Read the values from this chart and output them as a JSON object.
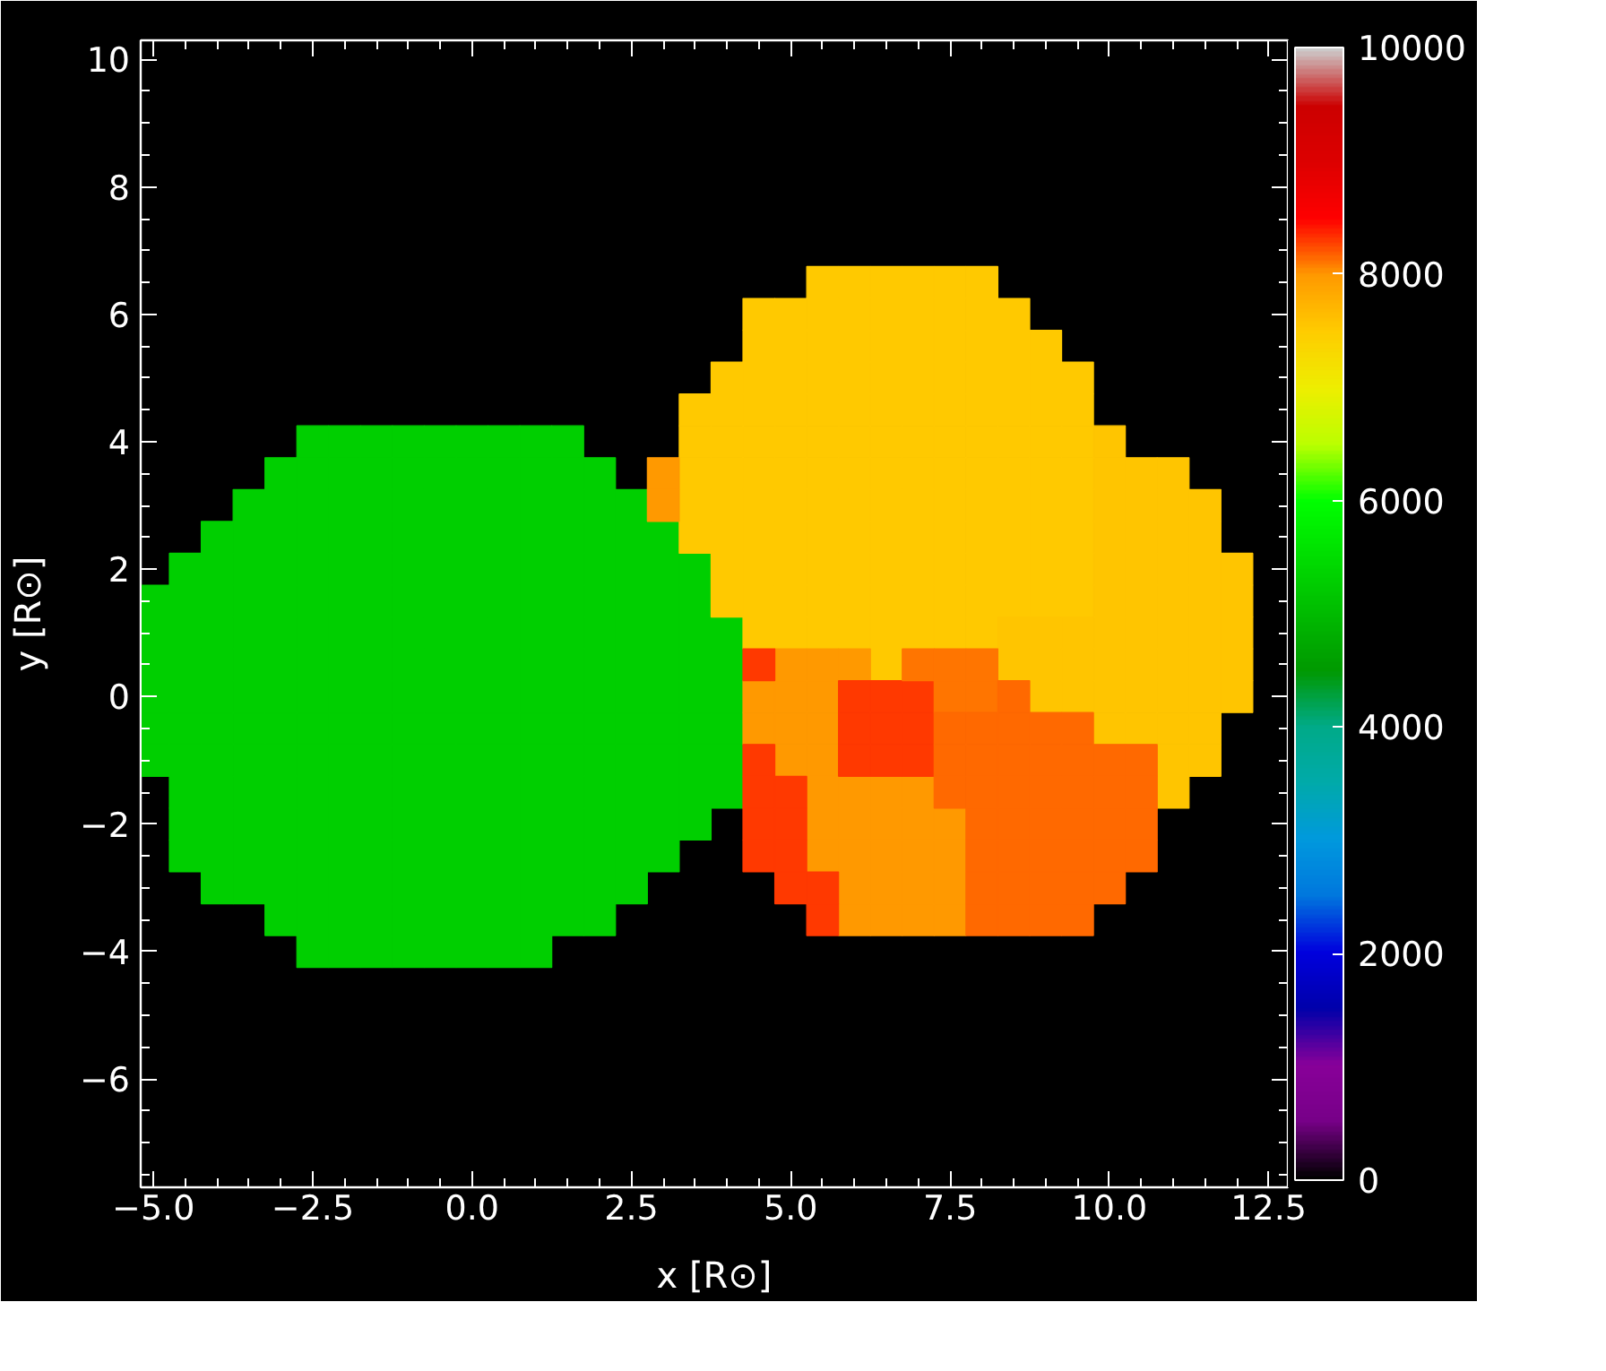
{
  "chart_data": {
    "type": "scatter",
    "marker": "square",
    "xlabel": "x [R⊙]",
    "ylabel": "y [R⊙]",
    "xlim": [
      -5.2,
      12.8
    ],
    "ylim": [
      -7.7,
      10.3
    ],
    "xticks": [
      {
        "value": -5,
        "label": "−5.0"
      },
      {
        "value": -2.5,
        "label": "−2.5"
      },
      {
        "value": 0,
        "label": "0.0"
      },
      {
        "value": 2.5,
        "label": "2.5"
      },
      {
        "value": 5,
        "label": "5.0"
      },
      {
        "value": 7.5,
        "label": "7.5"
      },
      {
        "value": 10,
        "label": "10.0"
      },
      {
        "value": 12.5,
        "label": "12.5"
      }
    ],
    "yticks": [
      {
        "value": -6,
        "label": "−6"
      },
      {
        "value": -4,
        "label": "−4"
      },
      {
        "value": -2,
        "label": "−2"
      },
      0,
      2,
      4,
      6,
      8,
      10
    ],
    "clim": [
      0,
      10000
    ],
    "cticks": [
      0,
      2000,
      4000,
      6000,
      8000,
      10000
    ],
    "series": [
      {
        "x": [
          -2.5,
          -2,
          -1.5,
          -1,
          -0.5,
          0,
          0.5,
          1,
          1.5,
          -3,
          -2.5,
          -2,
          -1.5,
          -1,
          -0.5,
          0,
          0.5,
          1,
          1.5,
          2,
          -3.5,
          -3,
          -2.5,
          -2,
          -1.5,
          -1,
          -0.5,
          0,
          0.5,
          1,
          1.5,
          2,
          2.5,
          -4,
          -3.5,
          -3,
          -2.5,
          -2,
          -1.5,
          -1,
          -0.5,
          0,
          0.5,
          1,
          1.5,
          2,
          2.5,
          3,
          -4.5,
          -4,
          -3.5,
          -3,
          -2.5,
          -2,
          -1.5,
          -1,
          -0.5,
          0,
          0.5,
          1,
          1.5,
          2,
          2.5,
          3,
          3.5,
          -5,
          -4.5,
          -4,
          -3.5,
          -3,
          -2.5,
          -2,
          -1.5,
          -1,
          -0.5,
          0,
          0.5,
          1,
          1.5,
          2,
          2.5,
          3,
          3.5,
          -5,
          -4.5,
          -4,
          -3.5,
          -3,
          -2.5,
          -2,
          -1.5,
          -1,
          -0.5,
          0,
          0.5,
          1,
          1.5,
          2,
          2.5,
          3,
          3.5,
          4,
          -5,
          -4.5,
          -4,
          -3.5,
          -3,
          -2.5,
          -2,
          -1.5,
          -1,
          -0.5,
          0,
          0.5,
          1,
          1.5,
          2,
          2.5,
          3,
          3.5,
          4,
          -5,
          -4.5,
          -4,
          -3.5,
          -3,
          -2.5,
          -2,
          -1.5,
          -1,
          -0.5,
          0,
          0.5,
          1,
          1.5,
          2,
          2.5,
          3,
          3.5,
          4,
          -5,
          -4.5,
          -4,
          -3.5,
          -3,
          -2.5,
          -2,
          -1.5,
          -1,
          -0.5,
          0,
          0.5,
          1,
          1.5,
          2,
          2.5,
          3,
          3.5,
          4,
          -5,
          -4.5,
          -4,
          -3.5,
          -3,
          -2.5,
          -2,
          -1.5,
          -1,
          -0.5,
          0,
          0.5,
          1,
          1.5,
          2,
          2.5,
          3,
          3.5,
          4,
          -4.5,
          -4,
          -3.5,
          -3,
          -2.5,
          -2,
          -1.5,
          -1,
          -0.5,
          0,
          0.5,
          1,
          1.5,
          2,
          2.5,
          3,
          3.5,
          4,
          -4.5,
          -4,
          -3.5,
          -3,
          -2.5,
          -2,
          -1.5,
          -1,
          -0.5,
          0,
          0.5,
          1,
          1.5,
          2,
          2.5,
          3,
          3.5,
          -4.5,
          -4,
          -3.5,
          -3,
          -2.5,
          -2,
          -1.5,
          -1,
          -0.5,
          0,
          0.5,
          1,
          1.5,
          2,
          2.5,
          3,
          -4,
          -3.5,
          -3,
          -2.5,
          -2,
          -1.5,
          -1,
          -0.5,
          0,
          0.5,
          1,
          1.5,
          2,
          2.5,
          -3,
          -2.5,
          -2,
          -1.5,
          -1,
          -0.5,
          0,
          0.5,
          1,
          1.5,
          2,
          -2.5,
          -2,
          -1.5,
          -1,
          -0.5,
          0,
          0.5,
          1
        ],
        "values": [
          4,
          4,
          4,
          4,
          4,
          4,
          4,
          4,
          4,
          3.5,
          3.5,
          3.5,
          3.5,
          3.5,
          3.5,
          3.5,
          3.5,
          3.5,
          3.5,
          3.5,
          3,
          3,
          3,
          3,
          3,
          3,
          3,
          3,
          3,
          3,
          3,
          3,
          3,
          2.5,
          2.5,
          2.5,
          2.5,
          2.5,
          2.5,
          2.5,
          2.5,
          2.5,
          2.5,
          2.5,
          2.5,
          2.5,
          2.5,
          2.5,
          2,
          2,
          2,
          2,
          2,
          2,
          2,
          2,
          2,
          2,
          2,
          2,
          2,
          2,
          2,
          2,
          2,
          1.5,
          1.5,
          1.5,
          1.5,
          1.5,
          1.5,
          1.5,
          1.5,
          1.5,
          1.5,
          1.5,
          1.5,
          1.5,
          1.5,
          1.5,
          1.5,
          1.5,
          1.5,
          1,
          1,
          1,
          1,
          1,
          1,
          1,
          1,
          1,
          1,
          1,
          1,
          1,
          1,
          1,
          1,
          1,
          1,
          1,
          0.5,
          0.5,
          0.5,
          0.5,
          0.5,
          0.5,
          0.5,
          0.5,
          0.5,
          0.5,
          0.5,
          0.5,
          0.5,
          0.5,
          0.5,
          0.5,
          0.5,
          0.5,
          0.5,
          0,
          0,
          0,
          0,
          0,
          0,
          0,
          0,
          0,
          0,
          0,
          0,
          0,
          0,
          0,
          0,
          0,
          0,
          0,
          -0.5,
          -0.5,
          -0.5,
          -0.5,
          -0.5,
          -0.5,
          -0.5,
          -0.5,
          -0.5,
          -0.5,
          -0.5,
          -0.5,
          -0.5,
          -0.5,
          -0.5,
          -0.5,
          -0.5,
          -0.5,
          -0.5,
          -1,
          -1,
          -1,
          -1,
          -1,
          -1,
          -1,
          -1,
          -1,
          -1,
          -1,
          -1,
          -1,
          -1,
          -1,
          -1,
          -1,
          -1,
          -1,
          -1.5,
          -1.5,
          -1.5,
          -1.5,
          -1.5,
          -1.5,
          -1.5,
          -1.5,
          -1.5,
          -1.5,
          -1.5,
          -1.5,
          -1.5,
          -1.5,
          -1.5,
          -1.5,
          -1.5,
          -1.5,
          -2,
          -2,
          -2,
          -2,
          -2,
          -2,
          -2,
          -2,
          -2,
          -2,
          -2,
          -2,
          -2,
          -2,
          -2,
          -2,
          -2,
          -2.5,
          -2.5,
          -2.5,
          -2.5,
          -2.5,
          -2.5,
          -2.5,
          -2.5,
          -2.5,
          -2.5,
          -2.5,
          -2.5,
          -2.5,
          -2.5,
          -2.5,
          -2.5,
          -3,
          -3,
          -3,
          -3,
          -3,
          -3,
          -3,
          -3,
          -3,
          -3,
          -3,
          -3,
          -3,
          -3,
          -3.5,
          -3.5,
          -3.5,
          -3.5,
          -3.5,
          -3.5,
          -3.5,
          -3.5,
          -3.5,
          -3.5,
          -3.5,
          -4,
          -4,
          -4,
          -4,
          -4,
          -4,
          -4,
          -4
        ],
        "cvalues": [
          5300,
          5300,
          5300,
          5300,
          5300,
          5300,
          5300,
          5300,
          5300,
          5300,
          5300,
          5300,
          5300,
          5300,
          5300,
          5300,
          5300,
          5300,
          5300,
          5300,
          5300,
          5300,
          5300,
          5300,
          5300,
          5300,
          5300,
          5300,
          5300,
          5300,
          5300,
          5300,
          5300,
          5300,
          5300,
          5300,
          5300,
          5300,
          5300,
          5300,
          5300,
          5300,
          5300,
          5300,
          5300,
          5300,
          5300,
          5300,
          5300,
          5300,
          5300,
          5300,
          5300,
          5300,
          5300,
          5300,
          5300,
          5300,
          5300,
          5300,
          5300,
          5300,
          5300,
          5300,
          5300,
          5300,
          5300,
          5300,
          5300,
          5300,
          5300,
          5300,
          5300,
          5300,
          5300,
          5300,
          5300,
          5300,
          5300,
          5300,
          5300,
          5300,
          5300,
          5300,
          5300,
          5300,
          5300,
          5300,
          5300,
          5300,
          5300,
          5300,
          5300,
          5300,
          5300,
          5300,
          5300,
          5300,
          5300,
          5300,
          5300,
          5300,
          5300,
          5300,
          5300,
          5300,
          5300,
          5300,
          5300,
          5300,
          5300,
          5300,
          5300,
          5300,
          5300,
          5300,
          5300,
          5300,
          5300,
          5300,
          5300,
          5300,
          5300,
          5300,
          5300,
          5300,
          5300,
          5300,
          5300,
          5300,
          5300,
          5300,
          5300,
          5300,
          5300,
          5300,
          5300,
          5300,
          5300,
          5300,
          5300,
          5300,
          5300,
          5300,
          5300,
          5300,
          5300,
          5300,
          5300,
          5300,
          5300,
          5300,
          5300,
          5300,
          5300,
          5300,
          5300,
          5300,
          5300,
          5300,
          5300,
          5300,
          5300,
          5300,
          5300,
          5300,
          5300,
          5300,
          5300,
          5300,
          5300,
          5300,
          5300,
          5300,
          5300,
          5300,
          5300,
          5300,
          5300,
          5300,
          5300,
          5300,
          5300,
          5300,
          5300,
          5300,
          5300,
          5300,
          5300,
          5300,
          5300,
          5300,
          5300,
          5300,
          5300,
          5300,
          5300,
          5300,
          5300,
          5300,
          5300,
          5300,
          5300,
          5300,
          5300,
          5300,
          5300,
          5300,
          5300,
          5300,
          5300,
          5300,
          5300,
          5300,
          5300,
          5300,
          5300,
          5300,
          5300,
          5300,
          5300,
          5300,
          5300,
          5300,
          5300,
          5300,
          5300,
          5300,
          5300,
          5300,
          5300,
          5300,
          5300,
          5300,
          5300,
          5300,
          5300,
          5300,
          5300,
          5300,
          5300,
          5300,
          5300,
          5300,
          5300,
          5300,
          5300,
          5300,
          5300,
          5300,
          5300,
          5300,
          5300,
          5300,
          5300,
          5300,
          5300,
          5300,
          5300,
          5300,
          5300,
          5300
        ]
      },
      {
        "x": [
          5.5,
          6,
          6.5,
          7,
          7.5,
          8,
          4.5,
          5,
          5.5,
          6,
          6.5,
          7,
          7.5,
          8,
          8.5,
          4.5,
          5,
          5.5,
          6,
          6.5,
          7,
          7.5,
          8,
          8.5,
          9,
          4,
          4.5,
          5,
          5.5,
          6,
          6.5,
          7,
          7.5,
          8,
          8.5,
          9,
          9.5,
          3.5,
          4,
          4.5,
          5,
          5.5,
          6,
          6.5,
          7,
          7.5,
          8,
          8.5,
          9,
          9.5,
          3.5,
          4,
          4.5,
          5,
          5.5,
          6,
          6.5,
          7,
          7.5,
          8,
          8.5,
          9,
          9.5,
          3.5,
          4,
          4.5,
          5,
          5.5,
          6,
          6.5,
          7,
          7.5,
          8,
          8.5,
          9,
          9.5,
          3.5,
          4,
          4.5,
          5,
          5.5,
          6,
          6.5,
          7,
          7.5,
          8,
          8.5,
          9,
          9.5,
          3.5,
          4,
          4.5,
          5,
          5.5,
          6,
          6.5,
          7,
          7.5,
          8,
          8.5,
          9,
          9.5,
          4,
          4.5,
          5,
          5.5,
          6,
          6.5,
          7,
          7.5,
          8,
          8.5,
          9,
          9.5,
          4,
          4.5,
          5,
          5.5,
          6,
          6.5,
          7,
          7.5,
          8,
          8.5,
          9,
          9.5,
          4.5,
          5,
          5.5,
          6,
          6.5,
          7,
          7.5,
          8,
          6.5
        ],
        "values": [
          6.5,
          6.5,
          6.5,
          6.5,
          6.5,
          6.5,
          6,
          6,
          6,
          6,
          6,
          6,
          6,
          6,
          6,
          5.5,
          5.5,
          5.5,
          5.5,
          5.5,
          5.5,
          5.5,
          5.5,
          5.5,
          5.5,
          5,
          5,
          5,
          5,
          5,
          5,
          5,
          5,
          5,
          5,
          5,
          5,
          4.5,
          4.5,
          4.5,
          4.5,
          4.5,
          4.5,
          4.5,
          4.5,
          4.5,
          4.5,
          4.5,
          4.5,
          4.5,
          4,
          4,
          4,
          4,
          4,
          4,
          4,
          4,
          4,
          4,
          4,
          4,
          4,
          3.5,
          3.5,
          3.5,
          3.5,
          3.5,
          3.5,
          3.5,
          3.5,
          3.5,
          3.5,
          3.5,
          3.5,
          3.5,
          3,
          3,
          3,
          3,
          3,
          3,
          3,
          3,
          3,
          3,
          3,
          3,
          3,
          2.5,
          2.5,
          2.5,
          2.5,
          2.5,
          2.5,
          2.5,
          2.5,
          2.5,
          2.5,
          2.5,
          2.5,
          2.5,
          2,
          2,
          2,
          2,
          2,
          2,
          2,
          2,
          2,
          2,
          2,
          2,
          1.5,
          1.5,
          1.5,
          1.5,
          1.5,
          1.5,
          1.5,
          1.5,
          1.5,
          1.5,
          1.5,
          1.5,
          1,
          1,
          1,
          1,
          1,
          1,
          1,
          1,
          0.5
        ],
        "cvalues": [
          7500,
          7500,
          7500,
          7500,
          7500,
          7500,
          7500,
          7500,
          7500,
          7500,
          7500,
          7500,
          7500,
          7500,
          7500,
          7500,
          7500,
          7500,
          7500,
          7500,
          7500,
          7500,
          7500,
          7500,
          7500,
          7500,
          7500,
          7500,
          7500,
          7500,
          7500,
          7500,
          7500,
          7500,
          7500,
          7500,
          7500,
          7500,
          7500,
          7500,
          7500,
          7500,
          7500,
          7500,
          7500,
          7500,
          7500,
          7500,
          7500,
          7500,
          7500,
          7500,
          7500,
          7500,
          7500,
          7500,
          7500,
          7500,
          7500,
          7500,
          7500,
          7500,
          7500,
          7500,
          7500,
          7500,
          7500,
          7500,
          7500,
          7500,
          7500,
          7500,
          7500,
          7500,
          7500,
          7500,
          7500,
          7500,
          7500,
          7500,
          7500,
          7500,
          7500,
          7500,
          7500,
          7500,
          7500,
          7500,
          7500,
          7500,
          7500,
          7500,
          7500,
          7500,
          7500,
          7500,
          7500,
          7500,
          7500,
          7500,
          7500,
          7500,
          7500,
          7500,
          7500,
          7500,
          7500,
          7500,
          7500,
          7500,
          7500,
          7500,
          7500,
          7500,
          7500,
          7500,
          7500,
          7500,
          7500,
          7500,
          7500,
          7500,
          7500,
          7500,
          7500,
          7500,
          7500,
          7500,
          7500,
          7500,
          7500,
          7500,
          7500,
          7500,
          7500
        ]
      },
      {
        "x": [
          10,
          10,
          10.5,
          11,
          10,
          10.5,
          11,
          11.5,
          10,
          10.5,
          11,
          11.5,
          10,
          10.5,
          11,
          11.5,
          12,
          10,
          10.5,
          11,
          11.5,
          12,
          8.5,
          9,
          9.5,
          10,
          10.5,
          11,
          11.5,
          12,
          8.5,
          9,
          9.5,
          10,
          10.5,
          11,
          11.5,
          12,
          9,
          9.5,
          10,
          10.5,
          11,
          11.5,
          12,
          10,
          10.5,
          11,
          11.5,
          11,
          11.5,
          11
        ],
        "values": [
          4,
          3.5,
          3.5,
          3.5,
          3,
          3,
          3,
          3,
          2.5,
          2.5,
          2.5,
          2.5,
          2,
          2,
          2,
          2,
          2,
          1.5,
          1.5,
          1.5,
          1.5,
          1.5,
          1,
          1,
          1,
          1,
          1,
          1,
          1,
          1,
          0.5,
          0.5,
          0.5,
          0.5,
          0.5,
          0.5,
          0.5,
          0.5,
          0,
          0,
          0,
          0,
          0,
          0,
          0,
          -0.5,
          -0.5,
          -0.5,
          -0.5,
          -1,
          -1,
          -1.5
        ],
        "cvalues": [
          7550,
          7550,
          7550,
          7550,
          7550,
          7550,
          7550,
          7550,
          7550,
          7550,
          7550,
          7550,
          7550,
          7550,
          7550,
          7550,
          7550,
          7550,
          7550,
          7550,
          7550,
          7550,
          7550,
          7550,
          7550,
          7550,
          7550,
          7550,
          7550,
          7550,
          7550,
          7550,
          7550,
          7550,
          7550,
          7550,
          7550,
          7550,
          7550,
          7550,
          7550,
          7550,
          7550,
          7550,
          7550,
          7550,
          7550,
          7550,
          7550,
          7550,
          7550,
          7550
        ]
      },
      {
        "x": [
          3,
          3,
          5,
          5.5,
          6,
          4.5,
          5,
          5.5,
          4.5,
          5,
          5.5,
          5,
          5.5,
          5.5,
          6,
          6.5,
          7,
          5.5,
          6,
          6.5,
          7,
          7.5,
          5.5,
          6,
          6.5,
          7,
          7.5,
          6,
          6.5,
          7,
          7.5,
          6,
          6.5,
          7,
          7.5
        ],
        "values": [
          3.5,
          3,
          0.5,
          0.5,
          0.5,
          0,
          0,
          0,
          -0.5,
          -0.5,
          -0.5,
          -1,
          -1,
          -1.5,
          -1.5,
          -1.5,
          -1.5,
          -2,
          -2,
          -2,
          -2,
          -2,
          -2.5,
          -2.5,
          -2.5,
          -2.5,
          -2.5,
          -3,
          -3,
          -3,
          -3,
          -3.5,
          -3.5,
          -3.5,
          -3.5
        ],
        "cvalues": [
          8000,
          8000,
          8000,
          8000,
          8000,
          8000,
          8000,
          8000,
          8000,
          8000,
          8000,
          8000,
          8000,
          8000,
          8000,
          8000,
          8000,
          8000,
          8000,
          8000,
          8000,
          8000,
          8000,
          8000,
          8000,
          8000,
          8000,
          8000,
          8000,
          8000,
          8000,
          8000,
          8000,
          8000,
          8000
        ]
      },
      {
        "x": [
          4.5,
          6,
          6.5,
          7,
          6,
          6.5,
          7,
          4.5,
          6,
          6.5,
          7,
          4.5,
          5,
          4.5,
          5,
          4.5,
          5,
          5,
          5.5,
          5.5
        ],
        "values": [
          0.5,
          0,
          0,
          0,
          -0.5,
          -0.5,
          -0.5,
          -1,
          -1,
          -1,
          -1,
          -1.5,
          -1.5,
          -2,
          -2,
          -2.5,
          -2.5,
          -3,
          -3,
          -3.5
        ],
        "cvalues": [
          8300,
          8300,
          8300,
          8300,
          8300,
          8300,
          8300,
          8300,
          8300,
          8300,
          8300,
          8300,
          8300,
          8300,
          8300,
          8300,
          8300,
          8300,
          8300,
          8300
        ]
      },
      {
        "x": [
          7,
          7.5,
          8,
          7.5,
          8
        ],
        "values": [
          0.5,
          0.5,
          0.5,
          0,
          0
        ],
        "cvalues": [
          8100,
          8100,
          8100,
          8100,
          8100
        ]
      },
      {
        "x": [
          8.5,
          7.5,
          8,
          8.5,
          9,
          9.5,
          7.5,
          8,
          8.5,
          9,
          9.5,
          10,
          10.5,
          7.5,
          8,
          8.5,
          9,
          9.5,
          10,
          10.5,
          8,
          8.5,
          9,
          9.5,
          10,
          10.5,
          8,
          8.5,
          9,
          9.5,
          10,
          10.5,
          8,
          8.5,
          9,
          9.5,
          10,
          8,
          8.5,
          9,
          9.5
        ],
        "values": [
          0,
          -0.5,
          -0.5,
          -0.5,
          -0.5,
          -0.5,
          -1,
          -1,
          -1,
          -1,
          -1,
          -1,
          -1,
          -1.5,
          -1.5,
          -1.5,
          -1.5,
          -1.5,
          -1.5,
          -1.5,
          -2,
          -2,
          -2,
          -2,
          -2,
          -2,
          -2.5,
          -2.5,
          -2.5,
          -2.5,
          -2.5,
          -2.5,
          -3,
          -3,
          -3,
          -3,
          -3,
          -3.5,
          -3.5,
          -3.5,
          -3.5
        ],
        "cvalues": [
          8150,
          8150,
          8150,
          8150,
          8150,
          8150,
          8150,
          8150,
          8150,
          8150,
          8150,
          8150,
          8150,
          8150,
          8150,
          8150,
          8150,
          8150,
          8150,
          8150,
          8150,
          8150,
          8150,
          8150,
          8150,
          8150,
          8150,
          8150,
          8150,
          8150,
          8150,
          8150,
          8150,
          8150,
          8150,
          8150,
          8150,
          8150,
          8150,
          8150,
          8150
        ]
      }
    ]
  }
}
